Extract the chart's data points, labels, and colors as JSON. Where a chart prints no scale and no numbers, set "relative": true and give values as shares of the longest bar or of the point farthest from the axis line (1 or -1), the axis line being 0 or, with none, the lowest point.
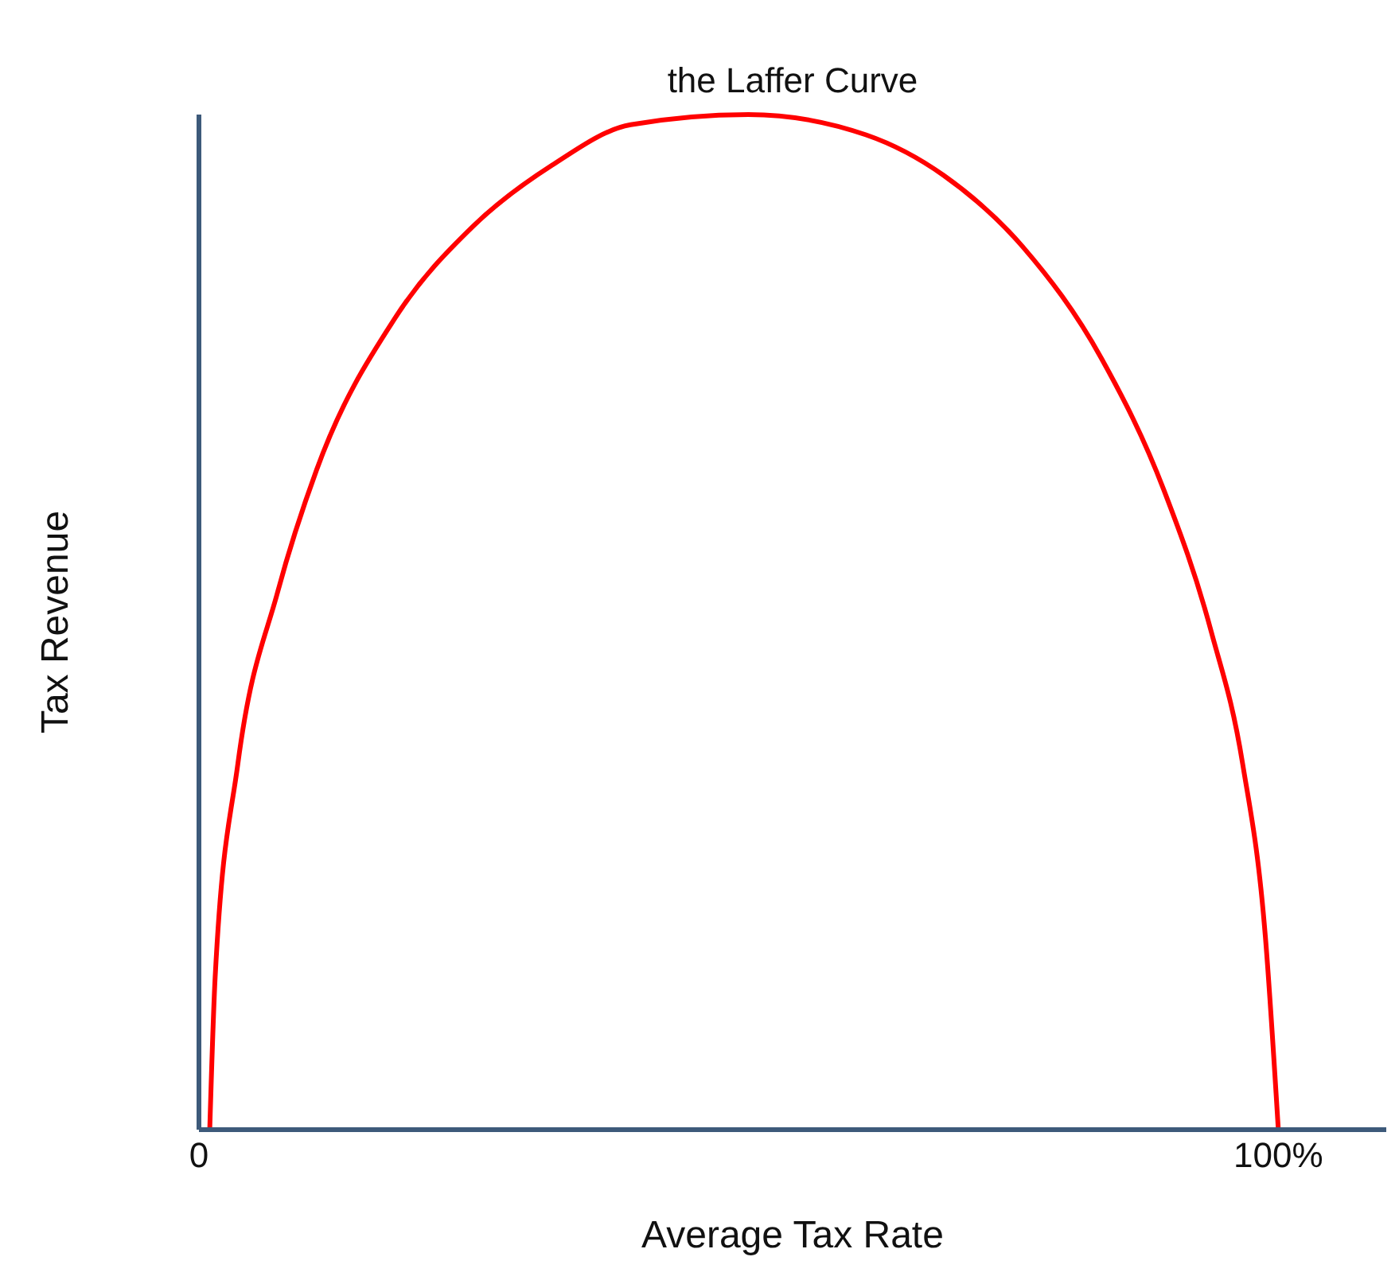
{
  "chart_data": {
    "type": "line",
    "title": "the Laffer Curve",
    "xlabel": "Average Tax Rate",
    "ylabel": "Tax Revenue",
    "relative": true,
    "x": [
      1,
      1.5,
      3.6,
      7.3,
      10.9,
      18.2,
      25.4,
      32.7,
      40,
      50.9,
      61.8,
      69,
      76.3,
      83.6,
      89.4,
      93.8,
      96.7,
      98.8,
      100
    ],
    "series": [
      {
        "color": "#ff0000",
        "values": [
          0,
          0.15,
          0.36,
          0.53,
          0.65,
          0.8,
          0.89,
          0.95,
          0.99,
          1,
          0.98,
          0.94,
          0.87,
          0.76,
          0.63,
          0.49,
          0.36,
          0.19,
          0
        ]
      }
    ],
    "xlim": [
      0,
      110
    ],
    "xticks": [
      {
        "value": 0,
        "label": "0"
      },
      {
        "value": 100,
        "label": "100%"
      }
    ],
    "grid": false,
    "legend": false,
    "marker": "none",
    "line_style": "solid"
  }
}
